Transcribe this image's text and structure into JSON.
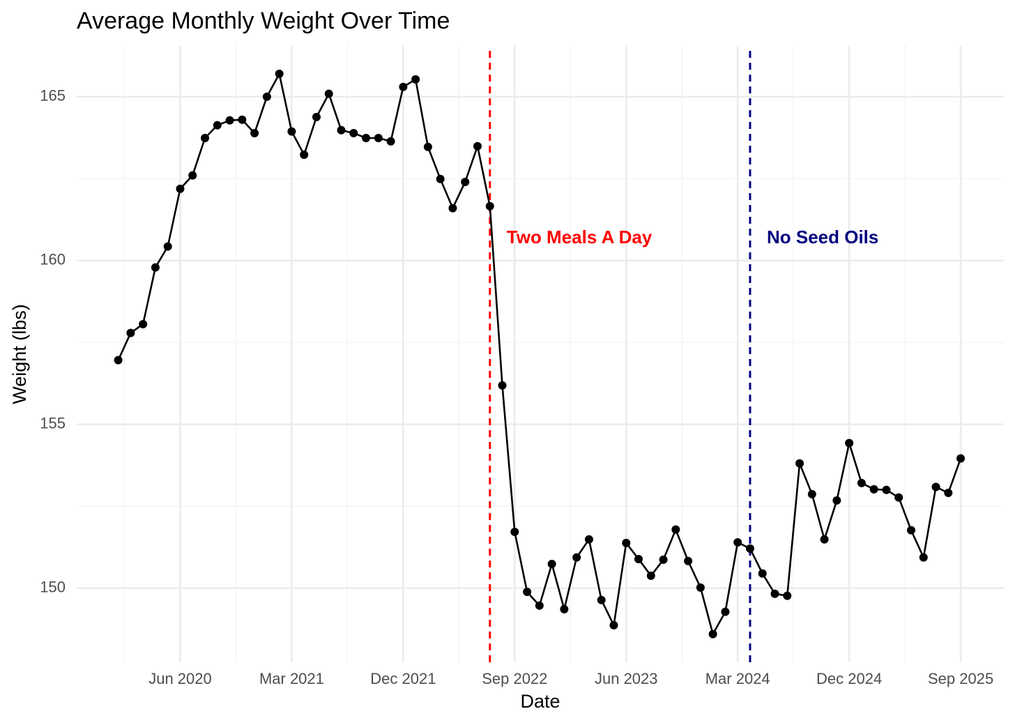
{
  "chart_data": {
    "type": "line",
    "title": "Average Monthly Weight Over Time",
    "x_label": "Date",
    "y_label": "Weight (lbs)",
    "x": [
      "2020-01",
      "2020-02",
      "2020-03",
      "2020-04",
      "2020-05",
      "2020-06",
      "2020-07",
      "2020-08",
      "2020-09",
      "2020-10",
      "2020-11",
      "2020-12",
      "2021-01",
      "2021-02",
      "2021-03",
      "2021-04",
      "2021-05",
      "2021-06",
      "2021-07",
      "2021-08",
      "2021-09",
      "2021-10",
      "2021-11",
      "2021-12",
      "2022-01",
      "2022-02",
      "2022-03",
      "2022-04",
      "2022-05",
      "2022-06",
      "2022-07",
      "2022-08",
      "2022-09",
      "2022-10",
      "2022-11",
      "2022-12",
      "2023-01",
      "2023-02",
      "2023-03",
      "2023-04",
      "2023-05",
      "2023-06",
      "2023-07",
      "2023-08",
      "2023-09",
      "2023-10",
      "2023-11",
      "2023-12",
      "2024-01",
      "2024-02",
      "2024-03",
      "2024-04",
      "2024-05",
      "2024-06",
      "2024-07",
      "2024-08",
      "2024-09",
      "2024-10",
      "2024-11",
      "2024-12",
      "2025-01",
      "2025-02",
      "2025-03",
      "2025-04",
      "2025-05",
      "2025-06",
      "2025-07",
      "2025-08",
      "2025-09"
    ],
    "series": [
      {
        "name": "Weight",
        "color": "#000000",
        "values": [
          156.96,
          157.79,
          158.06,
          159.79,
          160.43,
          162.19,
          162.6,
          163.74,
          164.13,
          164.28,
          164.3,
          163.89,
          165.0,
          165.7,
          163.94,
          163.23,
          164.38,
          165.09,
          163.98,
          163.89,
          163.74,
          163.74,
          163.64,
          165.3,
          165.53,
          163.47,
          162.49,
          161.6,
          162.4,
          163.49,
          161.66,
          156.19,
          151.72,
          149.89,
          149.47,
          150.74,
          149.36,
          150.94,
          151.49,
          149.64,
          148.87,
          151.38,
          150.89,
          150.38,
          150.87,
          151.79,
          150.83,
          150.02,
          148.6,
          149.28,
          151.4,
          151.21,
          150.45,
          149.83,
          149.77,
          153.81,
          152.87,
          151.49,
          152.68,
          154.43,
          153.21,
          153.02,
          153.0,
          152.77,
          151.77,
          150.94,
          153.09,
          152.91,
          153.96
        ]
      }
    ],
    "xlim": [
      "2019-09-21",
      "2025-12-16"
    ],
    "xticks": [
      {
        "value": "2020-06",
        "label": "Jun 2020"
      },
      {
        "value": "2021-03",
        "label": "Mar 2021"
      },
      {
        "value": "2021-12",
        "label": "Dec 2021"
      },
      {
        "value": "2022-09",
        "label": "Sep 2022"
      },
      {
        "value": "2023-06",
        "label": "Jun 2023"
      },
      {
        "value": "2024-03",
        "label": "Mar 2024"
      },
      {
        "value": "2024-12",
        "label": "Dec 2024"
      },
      {
        "value": "2025-09",
        "label": "Sep 2025"
      }
    ],
    "ylim": [
      147.74,
      166.57
    ],
    "yticks": [
      150,
      155,
      160,
      165
    ],
    "grid": true,
    "annotations": [
      {
        "x": "2022-07",
        "label": "Two Meals A Day",
        "color": "#ff0000"
      },
      {
        "x": "2024-04",
        "label": "No Seed Oils",
        "color": "#000080"
      }
    ]
  }
}
